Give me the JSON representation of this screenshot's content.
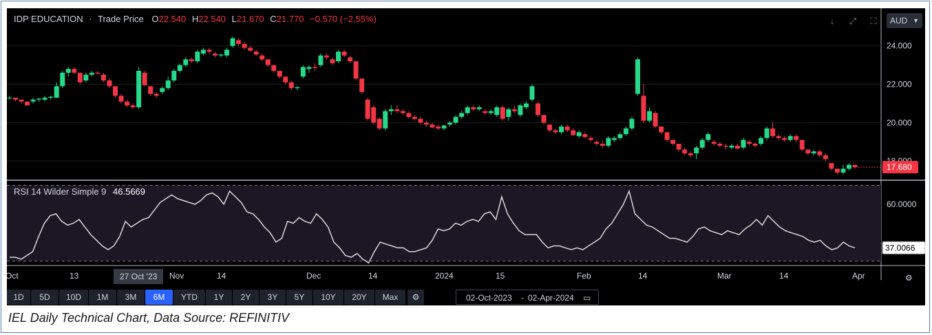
{
  "header": {
    "symbol": "IDP EDUCATION",
    "sep": "·",
    "field": "Trade Price",
    "o_label": "O",
    "o_value": "22.540",
    "h_label": "H",
    "h_value": "22.540",
    "l_label": "L",
    "l_value": "21.670",
    "c_label": "C",
    "c_value": "21.770",
    "change": "−0.570 (−2.55%)",
    "currency": "AUD",
    "icons": [
      "arrow-down-icon",
      "expand-icon",
      "fullscreen-icon"
    ]
  },
  "rsi_panel": {
    "label": "RSI 14 Wilder Simple 9",
    "value": "46.5669"
  },
  "price_tag": "17.680",
  "rsi_tag": "37.0066",
  "cursor_date": "27 Oct '23",
  "toolbar": {
    "timeframes": [
      "1D",
      "5D",
      "10D",
      "1M",
      "3M",
      "6M",
      "YTD",
      "1Y",
      "2Y",
      "3Y",
      "5Y",
      "10Y",
      "20Y",
      "Max"
    ],
    "active": "6M",
    "date_from": "02-Oct-2023",
    "date_sep": "-",
    "date_to": "02-Apr-2024"
  },
  "caption": "IEL Daily Technical Chart, Data Source: REFINITIV",
  "colors": {
    "up": "#26d98a",
    "down": "#f23645",
    "rsi_line": "#d9d9d9",
    "rsi_band": "#1b1724",
    "active_btn": "#2962ff"
  },
  "chart_data": [
    {
      "type": "candlestick",
      "title": "IDP EDUCATION · Trade Price",
      "ylim": [
        17.0,
        24.6
      ],
      "yticks": [
        "24.000",
        "22.000",
        "20.000",
        "18.000"
      ],
      "xticks": [
        "Oct",
        "13",
        "Nov",
        "14",
        "Dec",
        "14",
        "2024",
        "15",
        "Feb",
        "14",
        "Mar",
        "14",
        "Apr"
      ],
      "candles": [
        [
          21.3,
          21.4,
          21.2,
          21.3
        ],
        [
          21.3,
          21.3,
          21.1,
          21.2
        ],
        [
          21.2,
          21.2,
          21.0,
          21.1
        ],
        [
          21.1,
          21.1,
          20.9,
          20.9
        ],
        [
          21.1,
          21.3,
          21.0,
          21.2
        ],
        [
          21.2,
          21.3,
          21.1,
          21.25
        ],
        [
          21.2,
          21.4,
          21.1,
          21.3
        ],
        [
          21.3,
          21.4,
          21.2,
          21.35
        ],
        [
          21.3,
          22.1,
          21.3,
          21.9
        ],
        [
          21.9,
          22.7,
          21.8,
          22.6
        ],
        [
          22.6,
          22.9,
          22.4,
          22.8
        ],
        [
          22.8,
          22.9,
          22.5,
          22.6
        ],
        [
          22.6,
          22.6,
          22.0,
          22.1
        ],
        [
          22.2,
          22.6,
          22.1,
          22.5
        ],
        [
          22.5,
          22.7,
          22.4,
          22.6
        ],
        [
          22.6,
          22.7,
          22.5,
          22.55
        ],
        [
          22.5,
          22.6,
          22.1,
          22.2
        ],
        [
          22.2,
          22.3,
          21.8,
          21.9
        ],
        [
          21.9,
          21.9,
          21.3,
          21.4
        ],
        [
          21.4,
          21.5,
          21.0,
          21.1
        ],
        [
          21.1,
          21.2,
          20.8,
          20.9
        ],
        [
          20.9,
          21.0,
          20.7,
          20.8
        ],
        [
          20.8,
          22.9,
          20.7,
          22.7
        ],
        [
          22.6,
          22.7,
          21.9,
          21.95
        ],
        [
          21.9,
          21.9,
          21.4,
          21.5
        ],
        [
          21.5,
          21.6,
          21.3,
          21.4
        ],
        [
          21.6,
          21.9,
          21.5,
          21.8
        ],
        [
          21.8,
          22.4,
          21.7,
          22.2
        ],
        [
          22.2,
          22.8,
          22.1,
          22.7
        ],
        [
          22.7,
          23.1,
          22.6,
          23.0
        ],
        [
          23.0,
          23.4,
          22.9,
          23.3
        ],
        [
          23.3,
          23.4,
          23.1,
          23.2
        ],
        [
          23.2,
          23.8,
          23.1,
          23.7
        ],
        [
          23.6,
          23.9,
          23.5,
          23.8
        ],
        [
          23.8,
          23.9,
          23.6,
          23.7
        ],
        [
          23.6,
          23.7,
          23.4,
          23.5
        ],
        [
          23.5,
          23.6,
          23.4,
          23.55
        ],
        [
          23.5,
          23.9,
          23.4,
          23.8
        ],
        [
          24.0,
          24.5,
          23.9,
          24.4
        ],
        [
          24.3,
          24.4,
          24.0,
          24.1
        ],
        [
          24.1,
          24.2,
          23.8,
          23.9
        ],
        [
          23.9,
          24.0,
          23.7,
          23.75
        ],
        [
          23.7,
          23.8,
          23.5,
          23.55
        ],
        [
          23.5,
          23.6,
          23.2,
          23.3
        ],
        [
          23.3,
          23.3,
          22.9,
          23.0
        ],
        [
          23.0,
          23.0,
          22.6,
          22.7
        ],
        [
          22.7,
          22.7,
          22.3,
          22.4
        ],
        [
          22.4,
          22.4,
          22.0,
          22.1
        ],
        [
          22.1,
          22.2,
          21.7,
          21.8
        ],
        [
          21.8,
          21.9,
          21.7,
          21.85
        ],
        [
          22.4,
          23.0,
          22.3,
          22.9
        ],
        [
          22.8,
          23.0,
          22.6,
          22.9
        ],
        [
          22.9,
          23.1,
          22.7,
          22.85
        ],
        [
          23.0,
          23.6,
          22.9,
          23.5
        ],
        [
          23.5,
          23.6,
          23.3,
          23.4
        ],
        [
          23.3,
          23.4,
          23.0,
          23.1
        ],
        [
          23.2,
          23.8,
          23.1,
          23.7
        ],
        [
          23.7,
          23.8,
          23.4,
          23.5
        ],
        [
          23.4,
          23.5,
          23.1,
          23.2
        ],
        [
          23.2,
          23.2,
          22.2,
          22.3
        ],
        [
          22.3,
          22.3,
          21.5,
          21.6
        ],
        [
          21.2,
          21.3,
          20.1,
          20.2
        ],
        [
          20.8,
          20.9,
          19.9,
          20.0
        ],
        [
          20.2,
          20.3,
          19.6,
          19.7
        ],
        [
          19.7,
          20.7,
          19.6,
          20.6
        ],
        [
          20.6,
          20.9,
          20.4,
          20.7
        ],
        [
          20.7,
          20.9,
          20.5,
          20.6
        ],
        [
          20.6,
          20.7,
          20.4,
          20.5
        ],
        [
          20.5,
          20.6,
          20.2,
          20.3
        ],
        [
          20.3,
          20.4,
          20.1,
          20.2
        ],
        [
          20.2,
          20.3,
          19.9,
          20.0
        ],
        [
          20.0,
          20.1,
          19.8,
          19.9
        ],
        [
          19.9,
          20.0,
          19.7,
          19.75
        ],
        [
          19.8,
          19.9,
          19.6,
          19.7
        ],
        [
          19.7,
          19.9,
          19.6,
          19.85
        ],
        [
          19.9,
          20.1,
          19.8,
          20.0
        ],
        [
          20.0,
          20.4,
          19.9,
          20.3
        ],
        [
          20.3,
          20.6,
          20.2,
          20.5
        ],
        [
          20.5,
          20.9,
          20.4,
          20.8
        ],
        [
          20.8,
          20.9,
          20.6,
          20.7
        ],
        [
          20.7,
          20.9,
          20.6,
          20.8
        ],
        [
          20.6,
          20.7,
          20.4,
          20.5
        ],
        [
          20.5,
          20.7,
          20.4,
          20.6
        ],
        [
          20.4,
          20.9,
          20.3,
          20.8
        ],
        [
          20.8,
          20.9,
          20.1,
          20.2
        ],
        [
          20.3,
          20.8,
          20.1,
          20.7
        ],
        [
          20.7,
          20.9,
          20.5,
          20.6
        ],
        [
          20.4,
          21.0,
          20.3,
          20.9
        ],
        [
          20.8,
          21.1,
          20.7,
          21.0
        ],
        [
          21.2,
          22.0,
          21.1,
          21.9
        ],
        [
          21.0,
          21.1,
          20.3,
          20.4
        ],
        [
          20.4,
          20.4,
          19.9,
          20.0
        ],
        [
          19.9,
          19.9,
          19.5,
          19.6
        ],
        [
          19.6,
          19.7,
          19.4,
          19.5
        ],
        [
          19.5,
          19.9,
          19.4,
          19.8
        ],
        [
          19.8,
          19.9,
          19.5,
          19.6
        ],
        [
          19.6,
          19.7,
          19.3,
          19.35
        ],
        [
          19.3,
          19.6,
          19.2,
          19.5
        ],
        [
          19.4,
          19.5,
          19.2,
          19.25
        ],
        [
          19.2,
          19.3,
          19.0,
          19.1
        ],
        [
          19.0,
          19.1,
          18.8,
          18.9
        ],
        [
          18.9,
          19.1,
          18.7,
          18.8
        ],
        [
          18.8,
          19.3,
          18.7,
          19.2
        ],
        [
          19.1,
          19.3,
          19.0,
          19.2
        ],
        [
          19.2,
          19.5,
          19.1,
          19.4
        ],
        [
          19.4,
          19.8,
          19.3,
          19.7
        ],
        [
          19.7,
          20.3,
          19.6,
          20.2
        ],
        [
          21.5,
          23.4,
          21.4,
          23.3
        ],
        [
          21.4,
          22.0,
          20.0,
          20.1
        ],
        [
          20.1,
          20.8,
          20.0,
          20.6
        ],
        [
          20.5,
          20.6,
          19.7,
          19.8
        ],
        [
          19.8,
          19.8,
          19.4,
          19.5
        ],
        [
          19.5,
          19.5,
          19.0,
          19.1
        ],
        [
          19.1,
          19.1,
          18.8,
          18.9
        ],
        [
          18.9,
          18.9,
          18.5,
          18.6
        ],
        [
          18.6,
          18.7,
          18.3,
          18.4
        ],
        [
          18.4,
          18.5,
          18.2,
          18.3
        ],
        [
          18.4,
          18.8,
          18.1,
          18.7
        ],
        [
          18.7,
          19.2,
          18.6,
          19.1
        ],
        [
          19.1,
          19.5,
          19.0,
          19.4
        ],
        [
          19.0,
          19.1,
          18.8,
          18.9
        ],
        [
          18.9,
          19.0,
          18.7,
          18.8
        ],
        [
          18.8,
          18.9,
          18.6,
          18.75
        ],
        [
          18.7,
          18.9,
          18.6,
          18.8
        ],
        [
          18.8,
          18.9,
          18.6,
          18.65
        ],
        [
          18.7,
          19.2,
          18.6,
          19.1
        ],
        [
          19.0,
          19.1,
          18.8,
          18.9
        ],
        [
          18.9,
          19.0,
          18.7,
          18.8
        ],
        [
          18.9,
          19.3,
          18.8,
          19.2
        ],
        [
          19.2,
          19.8,
          19.1,
          19.7
        ],
        [
          19.7,
          20.0,
          19.2,
          19.3
        ],
        [
          19.3,
          19.4,
          19.1,
          19.2
        ],
        [
          19.2,
          19.3,
          19.0,
          19.1
        ],
        [
          19.1,
          19.4,
          19.0,
          19.3
        ],
        [
          19.3,
          19.4,
          19.0,
          19.1
        ],
        [
          19.1,
          19.1,
          18.5,
          18.6
        ],
        [
          18.6,
          18.6,
          18.3,
          18.4
        ],
        [
          18.4,
          18.6,
          18.3,
          18.5
        ],
        [
          18.5,
          18.6,
          18.2,
          18.3
        ],
        [
          18.3,
          18.4,
          18.0,
          18.1
        ],
        [
          17.9,
          17.9,
          17.5,
          17.6
        ],
        [
          17.6,
          17.6,
          17.3,
          17.4
        ],
        [
          17.4,
          17.8,
          17.3,
          17.6
        ],
        [
          17.6,
          17.9,
          17.5,
          17.8
        ],
        [
          17.8,
          17.8,
          17.6,
          17.68
        ]
      ]
    },
    {
      "type": "line",
      "title": "RSI 14 Wilder Simple 9",
      "ylim": [
        28,
        72
      ],
      "yticks": [
        "60.0000"
      ],
      "bands": [
        70,
        30
      ],
      "values": [
        32,
        32,
        31,
        33,
        35,
        43,
        50,
        54,
        55,
        51,
        49,
        50,
        52,
        48,
        44,
        41,
        38,
        36,
        38,
        43,
        51,
        48,
        50,
        52,
        53,
        57,
        61,
        63,
        65,
        63,
        62,
        61,
        60,
        62,
        65,
        66,
        64,
        60,
        67,
        64,
        61,
        56,
        55,
        52,
        48,
        45,
        40,
        42,
        51,
        50,
        53,
        51,
        50,
        55,
        52,
        48,
        40,
        37,
        33,
        32,
        34,
        31,
        29,
        35,
        40,
        39,
        38,
        37,
        37,
        35,
        35,
        36,
        37,
        41,
        47,
        46,
        47,
        50,
        49,
        51,
        52,
        51,
        55,
        56,
        52,
        64,
        55,
        50,
        46,
        44,
        44,
        44,
        40,
        37,
        38,
        38,
        37,
        36,
        37,
        36,
        38,
        40,
        42,
        47,
        50,
        55,
        60,
        67,
        55,
        52,
        49,
        48,
        46,
        44,
        42,
        42,
        41,
        40,
        43,
        47,
        48,
        46,
        45,
        44,
        46,
        45,
        44,
        47,
        49,
        52,
        49,
        54,
        51,
        48,
        46,
        45,
        44,
        43,
        41,
        40,
        41,
        38,
        36,
        37,
        40,
        38,
        37
      ]
    }
  ]
}
